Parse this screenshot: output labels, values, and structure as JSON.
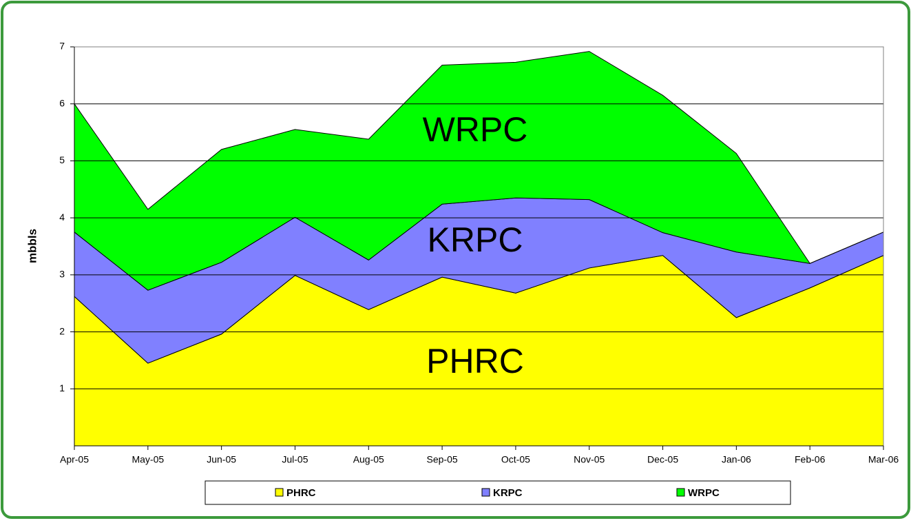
{
  "chart_data": {
    "type": "stacked_area",
    "y_label": "mbbls",
    "categories": [
      "Apr-05",
      "May-05",
      "Jun-05",
      "Jul-05",
      "Aug-05",
      "Sep-05",
      "Oct-05",
      "Nov-05",
      "Dec-05",
      "Jan-06",
      "Feb-06",
      "Mar-06"
    ],
    "series": [
      {
        "name": "PHRC",
        "color": "#ffff00",
        "values": [
          2.62,
          1.45,
          1.96,
          2.99,
          2.39,
          2.96,
          2.68,
          3.12,
          3.34,
          2.25,
          2.77,
          3.34
        ]
      },
      {
        "name": "KRPC",
        "color": "#8080ff",
        "values": [
          1.13,
          1.28,
          1.26,
          1.02,
          0.87,
          1.28,
          1.67,
          1.2,
          0.4,
          1.15,
          0.43,
          0.41
        ]
      },
      {
        "name": "WRPC",
        "color": "#00ff00",
        "values": [
          2.25,
          1.42,
          1.98,
          1.54,
          2.12,
          2.44,
          2.38,
          2.6,
          2.41,
          1.73,
          0,
          0
        ]
      }
    ],
    "annotations": [
      "WRPC",
      "KRPC",
      "PHRC"
    ],
    "ylim": [
      0,
      7
    ],
    "yticks": [
      1,
      2,
      3,
      4,
      5,
      6,
      7
    ],
    "grid": true,
    "legend": "bottom"
  }
}
